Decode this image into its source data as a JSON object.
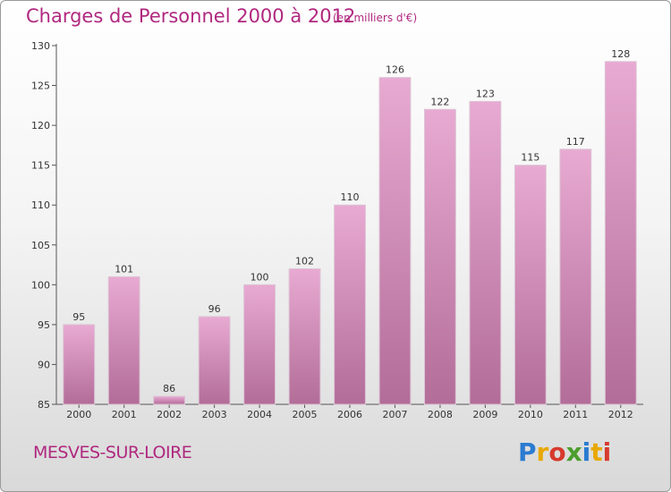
{
  "header": {
    "title": "Charges de Personnel 2000 à 2012",
    "subtitle": "(en milliers d'€)"
  },
  "footer": {
    "town": "MESVES-SUR-LOIRE",
    "brand_letters": [
      "P",
      "r",
      "o",
      "x",
      "i",
      "t",
      "i"
    ],
    "brand_colors": [
      "#2b7bd1",
      "#e8a800",
      "#d63a2d",
      "#4a9e2c",
      "#2b7bd1",
      "#e8a800",
      "#d63a2d"
    ]
  },
  "colors": {
    "bar_light": "#e8aad2",
    "bar_dark": "#b26d98",
    "accent": "#b0287f"
  },
  "chart_data": {
    "type": "bar",
    "title": "Charges de Personnel 2000 à 2012",
    "subtitle": "(en milliers d'€)",
    "categories": [
      "2000",
      "2001",
      "2002",
      "2003",
      "2004",
      "2005",
      "2006",
      "2007",
      "2008",
      "2009",
      "2010",
      "2011",
      "2012"
    ],
    "values": [
      95,
      101,
      86,
      96,
      100,
      102,
      110,
      126,
      122,
      123,
      115,
      117,
      128
    ],
    "ylim": [
      85,
      130
    ],
    "yticks": [
      85,
      90,
      95,
      100,
      105,
      110,
      115,
      120,
      125,
      130
    ],
    "grid": false,
    "legend": "none"
  }
}
